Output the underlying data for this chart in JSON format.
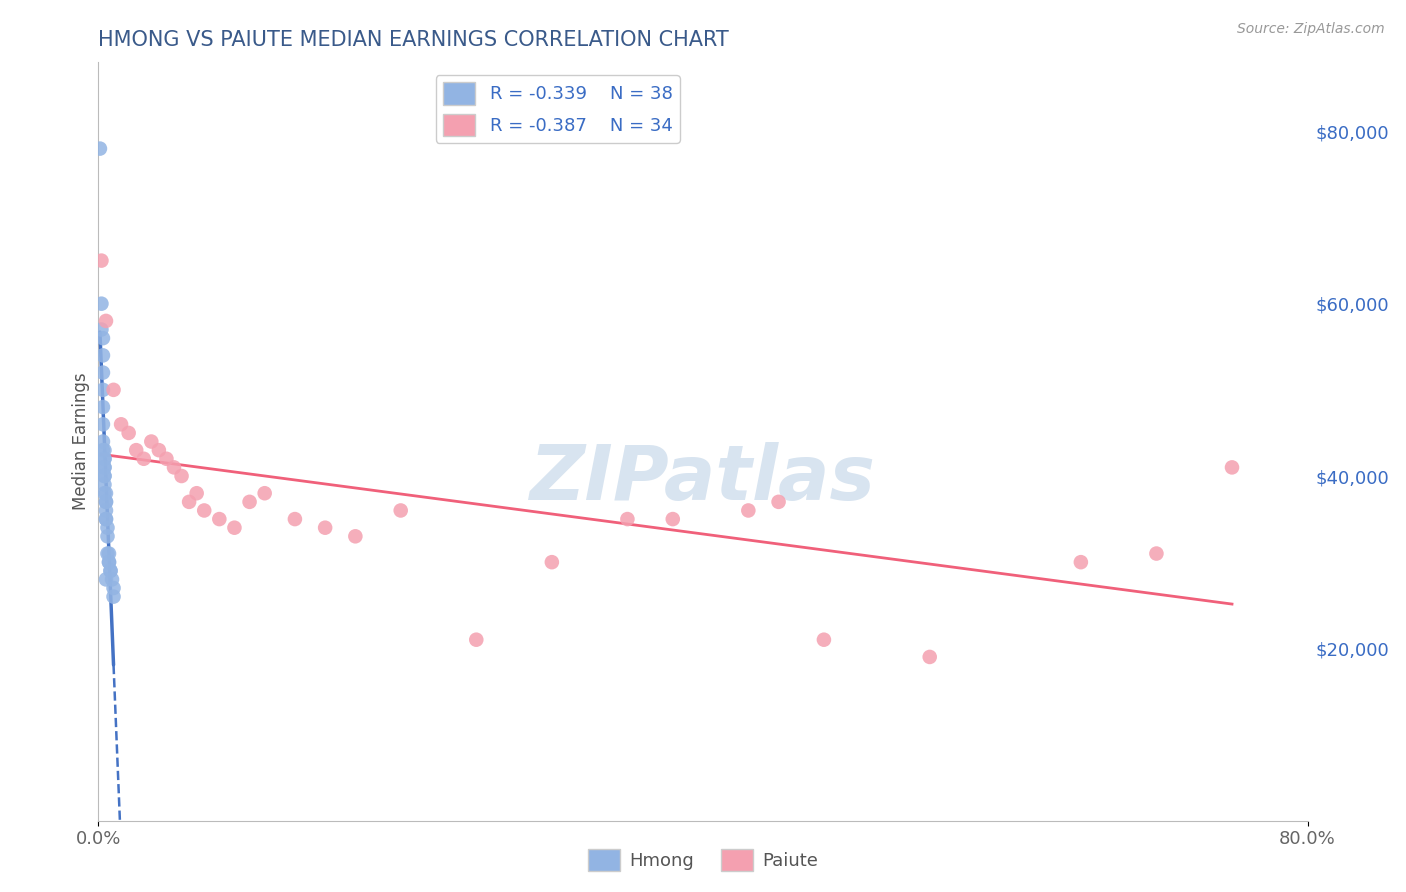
{
  "title": "HMONG VS PAIUTE MEDIAN EARNINGS CORRELATION CHART",
  "source_text": "Source: ZipAtlas.com",
  "ylabel_label": "Median Earnings",
  "right_ytick_labels": [
    "$20,000",
    "$40,000",
    "$60,000",
    "$80,000"
  ],
  "right_ytick_values": [
    20000,
    40000,
    60000,
    80000
  ],
  "xlim": [
    0.0,
    0.8
  ],
  "ylim": [
    0,
    88000
  ],
  "legend_hmong_r": "R = -0.339",
  "legend_hmong_n": "N = 38",
  "legend_paiute_r": "R = -0.387",
  "legend_paiute_n": "N = 34",
  "hmong_color": "#92b4e3",
  "paiute_color": "#f4a0b0",
  "hmong_line_color": "#4472c4",
  "paiute_line_color": "#f0607a",
  "background_color": "#ffffff",
  "grid_color": "#d0d8e8",
  "title_color": "#3a5a8a",
  "watermark_text": "ZIPatlas",
  "watermark_color": "#d8e4f0",
  "hmong_scatter_x": [
    0.001,
    0.002,
    0.002,
    0.003,
    0.003,
    0.003,
    0.003,
    0.003,
    0.003,
    0.003,
    0.003,
    0.004,
    0.004,
    0.004,
    0.004,
    0.004,
    0.004,
    0.004,
    0.004,
    0.004,
    0.005,
    0.005,
    0.005,
    0.005,
    0.005,
    0.005,
    0.005,
    0.006,
    0.006,
    0.006,
    0.007,
    0.007,
    0.007,
    0.008,
    0.008,
    0.009,
    0.01,
    0.01
  ],
  "hmong_scatter_y": [
    78000,
    60000,
    57000,
    56000,
    54000,
    52000,
    50000,
    48000,
    46000,
    44000,
    43000,
    43000,
    42000,
    42000,
    41000,
    41000,
    40000,
    40000,
    39000,
    38000,
    38000,
    37000,
    37000,
    36000,
    35000,
    35000,
    28000,
    34000,
    33000,
    31000,
    31000,
    30000,
    30000,
    29000,
    29000,
    28000,
    27000,
    26000
  ],
  "paiute_scatter_x": [
    0.002,
    0.005,
    0.01,
    0.015,
    0.02,
    0.025,
    0.03,
    0.035,
    0.04,
    0.045,
    0.05,
    0.055,
    0.06,
    0.065,
    0.07,
    0.08,
    0.09,
    0.1,
    0.11,
    0.13,
    0.15,
    0.17,
    0.2,
    0.25,
    0.3,
    0.35,
    0.38,
    0.43,
    0.45,
    0.48,
    0.55,
    0.65,
    0.7,
    0.75
  ],
  "paiute_scatter_y": [
    65000,
    58000,
    50000,
    46000,
    45000,
    43000,
    42000,
    44000,
    43000,
    42000,
    41000,
    40000,
    37000,
    38000,
    36000,
    35000,
    34000,
    37000,
    38000,
    35000,
    34000,
    33000,
    36000,
    21000,
    30000,
    35000,
    35000,
    36000,
    37000,
    21000,
    19000,
    30000,
    31000,
    41000
  ]
}
